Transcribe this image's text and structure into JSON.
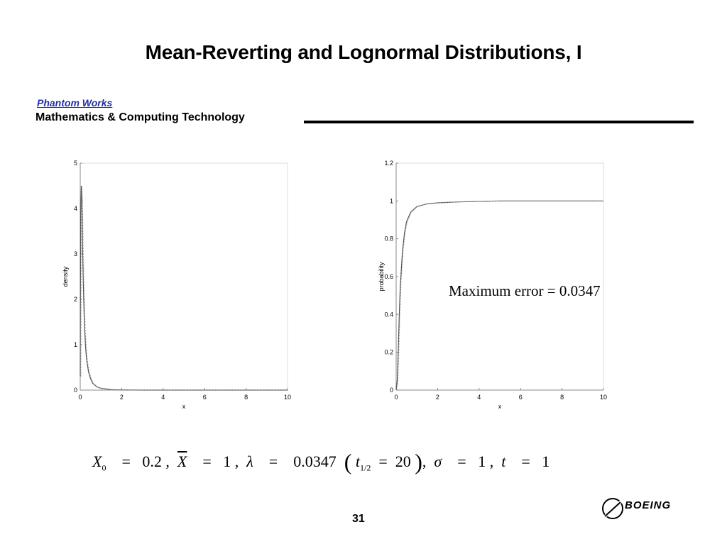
{
  "slide": {
    "title": "Mean-Reverting and Lognormal Distributions, I",
    "brand": "Phantom Works",
    "subtitle": "Mathematics & Computing Technology",
    "page_number": "31",
    "logo_text": "BOEING",
    "annotation": "Maximum error  =  0.0347"
  },
  "formula": {
    "x0_sym": "X",
    "x0_sub": "0",
    "x0_val": "0.2",
    "xbar_sym": "X",
    "xbar_val": "1",
    "lambda_sym": "λ",
    "lambda_val": "0.0347",
    "thalf_sym": "t",
    "thalf_sub": "1/2",
    "thalf_val": "20",
    "sigma_sym": "σ",
    "sigma_val": "1",
    "t_sym": "t",
    "t_val": "1"
  },
  "chart_data": [
    {
      "type": "line",
      "xlabel": "x",
      "ylabel": "density",
      "xlim": [
        0,
        10
      ],
      "ylim": [
        0,
        5
      ],
      "xticks": [
        "0",
        "2",
        "4",
        "6",
        "8",
        "10"
      ],
      "yticks": [
        "0",
        "1",
        "2",
        "3",
        "4",
        "5"
      ],
      "series": [
        {
          "x": [
            0,
            0.02,
            0.05,
            0.08,
            0.1,
            0.12,
            0.15,
            0.2,
            0.25,
            0.3,
            0.4,
            0.5,
            0.6,
            0.8,
            1.0,
            1.5,
            2.0,
            3.0,
            5.0,
            10.0
          ],
          "y": [
            0.3,
            3.8,
            4.5,
            4.2,
            3.6,
            3.0,
            2.3,
            1.5,
            1.0,
            0.7,
            0.4,
            0.25,
            0.15,
            0.07,
            0.04,
            0.01,
            0.005,
            0.0,
            0.0,
            0.0
          ]
        }
      ]
    },
    {
      "type": "line",
      "xlabel": "x",
      "ylabel": "probability",
      "xlim": [
        0,
        10
      ],
      "ylim": [
        0,
        1.2
      ],
      "xticks": [
        "0",
        "2",
        "4",
        "6",
        "8",
        "10"
      ],
      "yticks": [
        "0",
        "0.2",
        "0.4",
        "0.6",
        "0.8",
        "1",
        "1.2"
      ],
      "series": [
        {
          "x": [
            0,
            0.05,
            0.1,
            0.15,
            0.2,
            0.3,
            0.4,
            0.5,
            0.7,
            1.0,
            1.5,
            2.0,
            3.0,
            5.0,
            10.0
          ],
          "y": [
            0,
            0.05,
            0.2,
            0.4,
            0.55,
            0.73,
            0.83,
            0.89,
            0.94,
            0.97,
            0.985,
            0.99,
            0.995,
            1.0,
            1.0
          ]
        }
      ]
    }
  ]
}
